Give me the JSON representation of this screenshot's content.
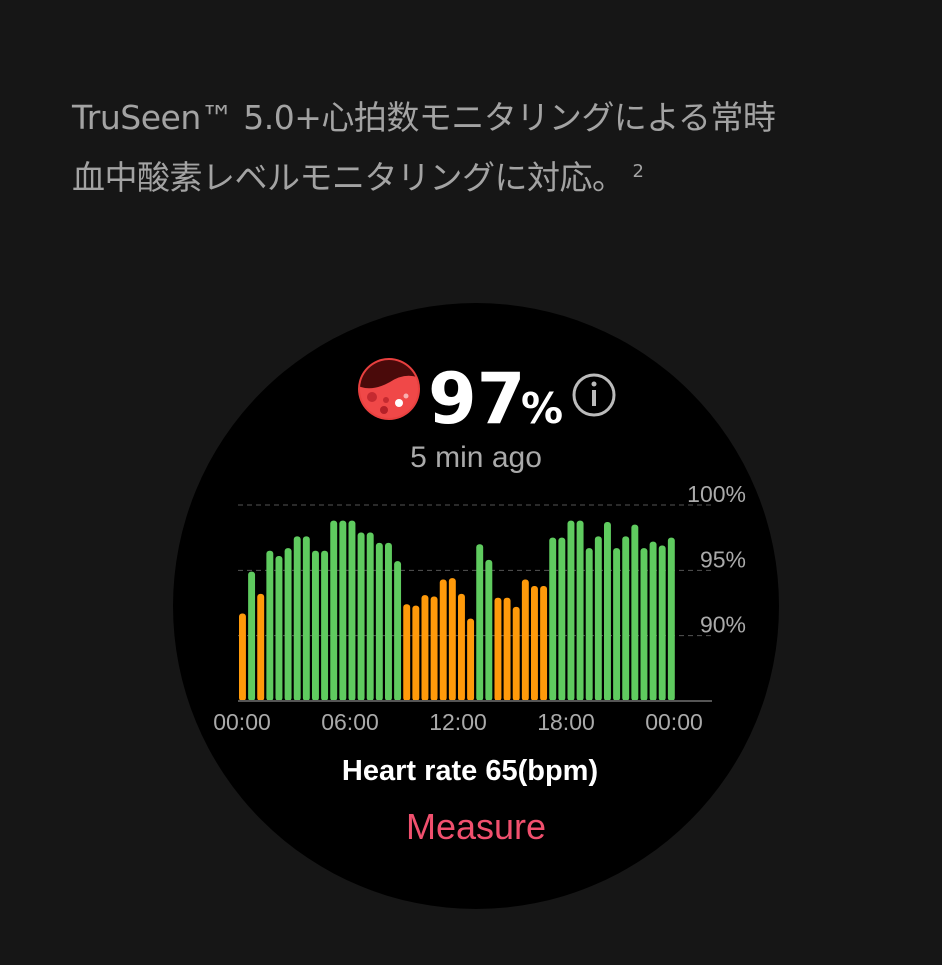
{
  "headline": {
    "line1": "TruSeen™ 5.0+心拍数モニタリングによる常時",
    "line2": "血中酸素レベルモニタリングに対応。",
    "footnote": "2"
  },
  "watch": {
    "icon": "blood-oxygen-icon",
    "value": "97",
    "unit": "%",
    "info_icon": "info-icon",
    "time_ago": "5 min ago",
    "heart_rate": "Heart rate 65(bpm)",
    "measure_label": "Measure",
    "colors": {
      "normal": "#5fcb5f",
      "low": "#ff9a0a",
      "measure": "#f0506e"
    }
  },
  "chart_data": {
    "type": "bar",
    "y_ticks": [
      "100%",
      "95%",
      "90%"
    ],
    "x_ticks": [
      "00:00",
      "06:00",
      "12:00",
      "18:00",
      "00:00"
    ],
    "ylim": [
      85,
      100
    ],
    "grid": true,
    "values": [
      91.7,
      94.9,
      93.2,
      96.5,
      96.1,
      96.7,
      97.6,
      97.6,
      96.5,
      96.5,
      98.8,
      98.8,
      98.8,
      97.9,
      97.9,
      97.1,
      97.1,
      95.7,
      92.4,
      92.3,
      93.1,
      93.0,
      94.3,
      94.4,
      93.2,
      91.3,
      97.0,
      95.8,
      92.9,
      92.9,
      92.2,
      94.3,
      93.8,
      93.8,
      97.5,
      97.5,
      98.8,
      98.8,
      96.7,
      97.6,
      98.7,
      96.7,
      97.6,
      98.5,
      96.7,
      97.2,
      96.9,
      97.5
    ],
    "status": [
      "low",
      "normal",
      "low",
      "normal",
      "normal",
      "normal",
      "normal",
      "normal",
      "normal",
      "normal",
      "normal",
      "normal",
      "normal",
      "normal",
      "normal",
      "normal",
      "normal",
      "normal",
      "low",
      "low",
      "low",
      "low",
      "low",
      "low",
      "low",
      "low",
      "normal",
      "normal",
      "low",
      "low",
      "low",
      "low",
      "low",
      "low",
      "normal",
      "normal",
      "normal",
      "normal",
      "normal",
      "normal",
      "normal",
      "normal",
      "normal",
      "normal",
      "normal",
      "normal",
      "normal",
      "normal"
    ]
  }
}
